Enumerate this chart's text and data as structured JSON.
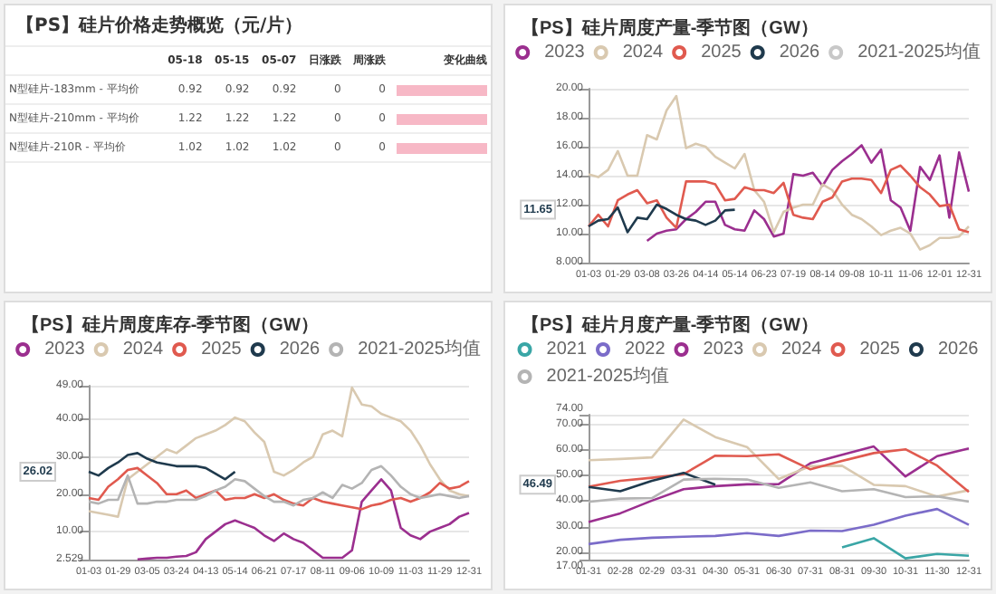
{
  "chart_data": [
    {
      "type": "other",
      "title": "【PS】硅片价格走势概览（元/片）",
      "categories": [
        "05-18",
        "05-15",
        "05-07",
        "日涨跌",
        "周涨跌",
        "变化曲线"
      ],
      "y_categories": [
        "N型硅片-183mm - 平均价",
        "N型硅片-210mm - 平均价",
        "N型硅片-210R - 平均价"
      ],
      "annotations": [
        "0.92",
        "0.92",
        "0.92",
        "0",
        "0",
        "1.22",
        "1.22",
        "1.22",
        "0",
        "0",
        "1.02",
        "1.02",
        "1.02",
        "0",
        "0"
      ]
    },
    {
      "type": "line",
      "title": "【PS】硅片周度产量-季节图（GW）",
      "marker": "none",
      "grid": "y",
      "legend": "top",
      "categories": [
        "01-03",
        null,
        null,
        "01-29",
        null,
        null,
        "03-08",
        null,
        null,
        "03-26",
        null,
        null,
        "04-14",
        null,
        null,
        "05-14",
        null,
        null,
        "06-23",
        null,
        null,
        "07-19",
        null,
        null,
        "08-14",
        null,
        null,
        "09-08",
        null,
        null,
        "10-11",
        null,
        null,
        "11-06",
        null,
        null,
        "12-01",
        null,
        null,
        "12-31"
      ],
      "ylim": [
        8,
        20
      ],
      "yticks": [
        {
          "value": 8,
          "label": "8.000"
        },
        {
          "value": 10,
          "label": "10.00"
        },
        {
          "value": 12,
          "label": "12.00"
        },
        {
          "value": 14,
          "label": "14.00"
        },
        {
          "value": 16,
          "label": "16.00"
        },
        {
          "value": 18,
          "label": "18.00"
        },
        {
          "value": 20,
          "label": "20.00"
        }
      ],
      "annotations": [
        "11.65"
      ],
      "series": [
        {
          "name": "2023",
          "color": "#9b2f8f",
          "values": [
            null,
            null,
            null,
            null,
            null,
            null,
            9.5,
            10.0,
            10.2,
            10.3,
            11.0,
            11.5,
            12.2,
            12.2,
            10.6,
            10.3,
            10.2,
            11.6,
            11.0,
            9.8,
            10.0,
            14.1,
            14.0,
            14.2,
            13.3,
            14.4,
            15.0,
            15.5,
            16.1,
            14.9,
            15.8,
            12.3,
            11.8,
            10.2,
            14.6,
            13.7,
            15.4,
            11.1,
            15.6,
            12.9
          ]
        },
        {
          "name": "2024",
          "color": "#d9c9b0",
          "values": [
            14.1,
            13.9,
            14.4,
            15.7,
            14.0,
            14.0,
            16.8,
            16.5,
            18.5,
            19.5,
            15.9,
            16.2,
            16.0,
            15.3,
            14.9,
            14.5,
            15.5,
            13.0,
            12.2,
            10.1,
            11.5,
            11.8,
            12.0,
            12.0,
            13.4,
            13.0,
            12.0,
            11.3,
            11.0,
            10.5,
            9.9,
            10.2,
            10.4,
            10.0,
            8.9,
            9.2,
            9.7,
            9.7,
            9.8,
            10.5
          ]
        },
        {
          "name": "2025",
          "color": "#e05a4f",
          "values": [
            10.5,
            11.3,
            10.5,
            12.3,
            12.7,
            13.0,
            12.1,
            12.3,
            11.1,
            10.4,
            13.6,
            13.6,
            13.6,
            13.4,
            12.3,
            12.4,
            13.2,
            13.0,
            13.0,
            12.8,
            13.5,
            11.3,
            11.1,
            11.0,
            12.2,
            12.5,
            13.6,
            13.8,
            13.8,
            13.7,
            12.8,
            14.4,
            14.7,
            14.0,
            13.2,
            12.7,
            11.9,
            12.0,
            10.3,
            10.1
          ]
        },
        {
          "name": "2026",
          "color": "#1f3a4d",
          "values": [
            10.5,
            10.9,
            11.0,
            11.8,
            10.1,
            11.1,
            11.0,
            12.0,
            11.7,
            11.3,
            11.0,
            10.9,
            10.6,
            10.9,
            11.6,
            11.65,
            null,
            null,
            null,
            null,
            null,
            null,
            null,
            null,
            null,
            null,
            null,
            null,
            null,
            null,
            null,
            null,
            null,
            null,
            null,
            null,
            null,
            null,
            null,
            null
          ]
        },
        {
          "name": "2021-2025均值",
          "color": "#c8c8c8",
          "values": [
            null,
            null,
            null,
            null,
            null,
            null,
            null,
            null,
            null,
            null,
            null,
            null,
            null,
            null,
            null,
            null,
            null,
            null,
            null,
            null,
            null,
            null,
            null,
            null,
            null,
            null,
            null,
            null,
            null,
            null,
            null,
            null,
            null,
            null,
            null,
            null,
            null,
            null,
            null,
            null
          ]
        }
      ]
    },
    {
      "type": "line",
      "title": "【PS】硅片周度库存-季节图（GW）",
      "marker": "none",
      "grid": "y",
      "legend": "top",
      "categories": [
        "01-03",
        null,
        null,
        "01-29",
        null,
        null,
        "03-05",
        null,
        null,
        "03-24",
        null,
        null,
        "04-13",
        null,
        null,
        "05-14",
        null,
        null,
        "06-21",
        null,
        null,
        "07-17",
        null,
        null,
        "08-11",
        null,
        null,
        "09-06",
        null,
        null,
        "10-09",
        null,
        null,
        "11-03",
        null,
        null,
        "11-29",
        null,
        null,
        "12-31"
      ],
      "ylim": [
        2.529,
        49
      ],
      "yticks": [
        {
          "value": 2.529,
          "label": "2.529"
        },
        {
          "value": 10,
          "label": "10.00"
        },
        {
          "value": 20,
          "label": "20.00"
        },
        {
          "value": 30,
          "label": "30.00"
        },
        {
          "value": 40,
          "label": "40.00"
        },
        {
          "value": 49,
          "label": "49.00"
        }
      ],
      "annotations": [
        "26.02"
      ],
      "series": [
        {
          "name": "2023",
          "color": "#9b2f8f",
          "values": [
            null,
            null,
            null,
            null,
            null,
            2.6,
            2.8,
            3,
            3,
            3.3,
            3.5,
            4.5,
            8,
            10,
            12,
            13,
            12,
            11,
            9,
            7.5,
            9.5,
            8,
            7,
            5,
            3,
            3,
            3,
            5,
            18,
            21,
            24,
            21,
            11,
            9,
            8,
            10,
            11,
            12,
            14,
            15
          ]
        },
        {
          "name": "2024",
          "color": "#d9c9b0",
          "values": [
            15.5,
            15,
            14.5,
            14,
            24,
            26,
            28,
            30,
            32,
            31,
            33,
            35,
            36,
            37,
            38.5,
            40.5,
            39.5,
            36.5,
            34,
            26,
            25,
            26.5,
            28.5,
            30,
            36,
            37,
            35.5,
            48.5,
            44,
            43.5,
            41.5,
            40.5,
            39.5,
            37,
            33,
            28,
            24,
            21,
            20,
            19.5
          ]
        },
        {
          "name": "2025",
          "color": "#e05a4f",
          "values": [
            19,
            18.5,
            22,
            24,
            26.5,
            27,
            25,
            23,
            20,
            20,
            21,
            19,
            20,
            21,
            18.5,
            19,
            19,
            20,
            19,
            20,
            18.5,
            17.5,
            17,
            19,
            18,
            17.5,
            17,
            16.5,
            16,
            17,
            17.5,
            18.5,
            19,
            18,
            19,
            20.5,
            23,
            21.5,
            22,
            23.5
          ]
        },
        {
          "name": "2026",
          "color": "#1f3a4d",
          "values": [
            26,
            25,
            27,
            28.5,
            30.5,
            31,
            29.5,
            28.5,
            28,
            27.5,
            27.5,
            27.5,
            27,
            25.5,
            24,
            26.02,
            null,
            null,
            null,
            null,
            null,
            null,
            null,
            null,
            null,
            null,
            null,
            null,
            null,
            null,
            null,
            null,
            null,
            null,
            null,
            null,
            null,
            null,
            null,
            null
          ]
        },
        {
          "name": "2021-2025均值",
          "color": "#b4b4b4",
          "values": [
            18,
            17.5,
            18.5,
            18.5,
            25,
            17.5,
            17.5,
            18,
            18,
            18.5,
            18.5,
            18.5,
            19.5,
            21,
            22,
            24,
            23.5,
            21.5,
            19.5,
            18,
            18,
            17,
            18.5,
            19,
            20.5,
            19,
            22.5,
            21.5,
            23,
            26.5,
            27.5,
            25,
            22,
            20,
            19,
            19.5,
            20,
            19.5,
            19,
            19.5
          ]
        }
      ]
    },
    {
      "type": "line",
      "title": "【PS】硅片月度产量-季节图（GW）",
      "marker": "none",
      "grid": "y",
      "legend": "top",
      "categories": [
        "01-31",
        "02-28",
        "02-29",
        "03-31",
        "04-30",
        "05-31",
        "06-30",
        "07-31",
        "08-31",
        "09-30",
        "10-31",
        "11-30",
        "12-31"
      ],
      "ylim": [
        17,
        74
      ],
      "yticks": [
        {
          "value": 17,
          "label": "17.00"
        },
        {
          "value": 20,
          "label": "20.00"
        },
        {
          "value": 30,
          "label": "30.00"
        },
        {
          "value": 40,
          "label": "40.00"
        },
        {
          "value": 50,
          "label": "50.00"
        },
        {
          "value": 60,
          "label": "60.00"
        },
        {
          "value": 70,
          "label": "70.00"
        },
        {
          "value": 74,
          "label": "74.00"
        }
      ],
      "annotations": [
        "46.49"
      ],
      "series": [
        {
          "name": "2021",
          "color": "#3aa6a6",
          "values": [
            null,
            null,
            null,
            null,
            null,
            null,
            null,
            null,
            21.8,
            25.4,
            17.5,
            19.2,
            18.5
          ]
        },
        {
          "name": "2022",
          "color": "#7b6cc9",
          "values": [
            23.1,
            24.8,
            25.6,
            26,
            26.3,
            27.4,
            26.3,
            28.4,
            28.2,
            30.7,
            34.3,
            36.9,
            30.7
          ]
        },
        {
          "name": "2023",
          "color": "#9b2f8f",
          "values": [
            31.8,
            35.2,
            40.2,
            44.7,
            45.9,
            46.6,
            46.7,
            54.9,
            58.2,
            61.5,
            49.7,
            57.7,
            60.7
          ]
        },
        {
          "name": "2024",
          "color": "#d9c9b0",
          "values": [
            56.1,
            56.6,
            57.2,
            72.1,
            65.2,
            61.3,
            48.7,
            53.8,
            53.9,
            46.4,
            45.9,
            41.8,
            44.3
          ]
        },
        {
          "name": "2025",
          "color": "#e05a4f",
          "values": [
            45.7,
            48,
            49.2,
            50.6,
            57.9,
            57.7,
            58.4,
            52.5,
            55.8,
            58.9,
            60.4,
            54,
            43.6
          ]
        },
        {
          "name": "2026",
          "color": "#1f3a4d",
          "values": [
            45.6,
            43.9,
            48,
            51.1,
            46.49,
            null,
            null,
            null,
            null,
            null,
            null,
            null,
            null
          ]
        },
        {
          "name": "2021-2025均值",
          "color": "#b4b4b4",
          "values": [
            39.7,
            41,
            41.2,
            48.5,
            48.8,
            48.5,
            45.2,
            47.4,
            43.9,
            44.7,
            41.6,
            41.9,
            39.8
          ]
        }
      ]
    }
  ]
}
